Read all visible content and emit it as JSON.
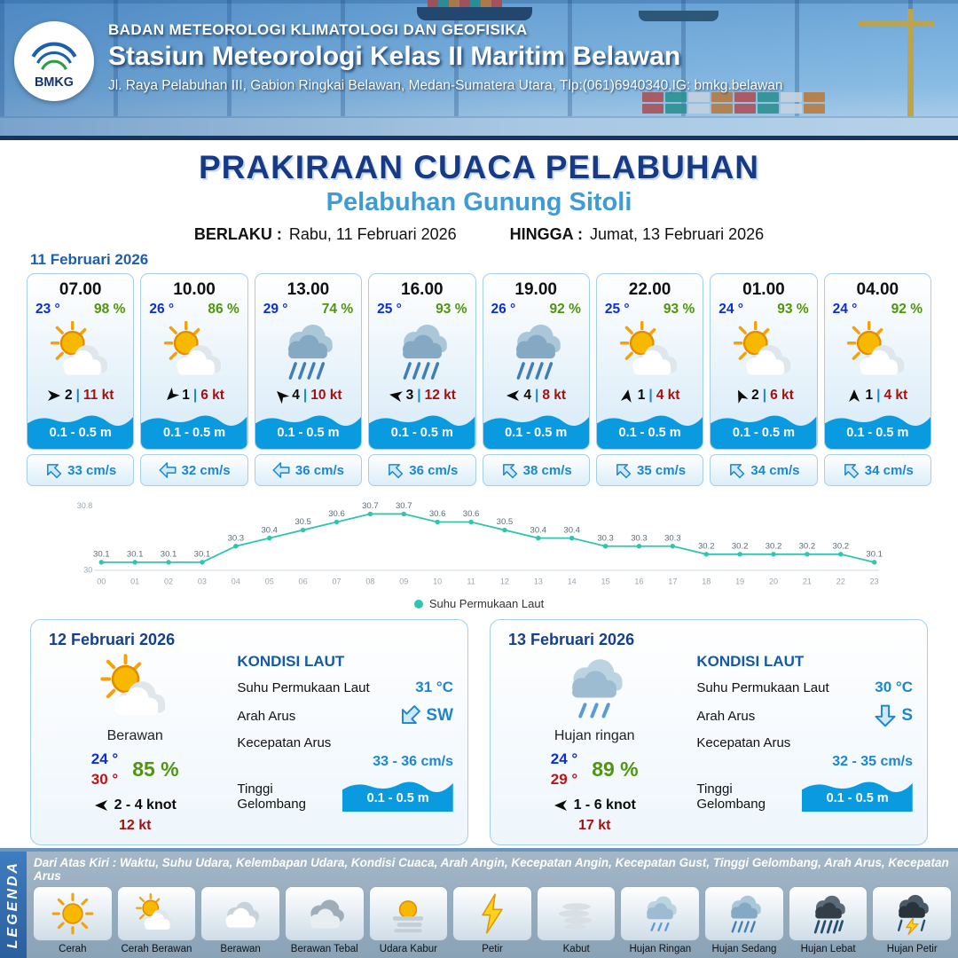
{
  "palette": {
    "accent_blue": "#1b5fae",
    "value_blue": "#0a2fd4",
    "humidity_green": "#4f960b",
    "gust_red": "#a51010",
    "wave_blue": "#0a9ae0",
    "line_teal": "#2fc5ae"
  },
  "header": {
    "org": "BADAN METEOROLOGI KLIMATOLOGI DAN GEOFISIKA",
    "station": "Stasiun Meteorologi Kelas II Maritim Belawan",
    "address": "Jl. Raya Pelabuhan III, Gabion Ringkai Belawan, Medan-Sumatera Utara, Tlp:(061)6940340,IG: bmkg.belawan",
    "logo_label": "BMKG"
  },
  "title": {
    "main": "PRAKIRAAN CUACA PELABUHAN",
    "port": "Pelabuhan Gunung Sitoli",
    "valid_from_label": "BERLAKU :",
    "valid_from": "Rabu, 11 Februari 2026",
    "valid_to_label": "HINGGA :",
    "valid_to": "Jumat, 13 Februari 2026"
  },
  "forecast": {
    "date": "11 Februari 2026",
    "cards": [
      {
        "time": "07.00",
        "temp": "23 °",
        "rh": "98 %",
        "icon": "cerah-berawan",
        "wind_val": "2",
        "wind_kt": "11 kt",
        "wind_rot": 90,
        "wave": "0.1 - 0.5 m",
        "current": "33 cm/s",
        "current_rot": 315
      },
      {
        "time": "10.00",
        "temp": "26 °",
        "rh": "86 %",
        "icon": "cerah-berawan",
        "wind_val": "1",
        "wind_kt": "6 kt",
        "wind_rot": 225,
        "wave": "0.1 - 0.5 m",
        "current": "32 cm/s",
        "current_rot": 270
      },
      {
        "time": "13.00",
        "temp": "29 °",
        "rh": "74 %",
        "icon": "hujan-sedang",
        "wind_val": "4",
        "wind_kt": "10 kt",
        "wind_rot": 315,
        "wave": "0.1 - 0.5 m",
        "current": "36 cm/s",
        "current_rot": 270
      },
      {
        "time": "16.00",
        "temp": "25 °",
        "rh": "93 %",
        "icon": "hujan-sedang",
        "wind_val": "3",
        "wind_kt": "12 kt",
        "wind_rot": 280,
        "wave": "0.1 - 0.5 m",
        "current": "36 cm/s",
        "current_rot": 315
      },
      {
        "time": "19.00",
        "temp": "26 °",
        "rh": "92 %",
        "icon": "hujan-sedang",
        "wind_val": "4",
        "wind_kt": "8 kt",
        "wind_rot": 270,
        "wave": "0.1 - 0.5 m",
        "current": "38 cm/s",
        "current_rot": 315
      },
      {
        "time": "22.00",
        "temp": "25 °",
        "rh": "93 %",
        "icon": "cerah-berawan",
        "wind_val": "1",
        "wind_kt": "4 kt",
        "wind_rot": 10,
        "wave": "0.1 - 0.5 m",
        "current": "35 cm/s",
        "current_rot": 315
      },
      {
        "time": "01.00",
        "temp": "24 °",
        "rh": "93 %",
        "icon": "cerah-berawan",
        "wind_val": "2",
        "wind_kt": "6 kt",
        "wind_rot": 335,
        "wave": "0.1 - 0.5 m",
        "current": "34 cm/s",
        "current_rot": 315
      },
      {
        "time": "04.00",
        "temp": "24 °",
        "rh": "92 %",
        "icon": "cerah-berawan",
        "wind_val": "1",
        "wind_kt": "4 kt",
        "wind_rot": 0,
        "wave": "0.1 - 0.5 m",
        "current": "34 cm/s",
        "current_rot": 315
      }
    ]
  },
  "chart_data": {
    "type": "line",
    "series_label": "Suhu Permukaan Laut",
    "x": [
      "00",
      "01",
      "02",
      "03",
      "04",
      "05",
      "06",
      "07",
      "08",
      "09",
      "10",
      "11",
      "12",
      "13",
      "14",
      "15",
      "16",
      "17",
      "18",
      "19",
      "20",
      "21",
      "22",
      "23"
    ],
    "values": [
      30.1,
      30.1,
      30.1,
      30.1,
      30.3,
      30.4,
      30.5,
      30.6,
      30.7,
      30.7,
      30.6,
      30.6,
      30.5,
      30.4,
      30.4,
      30.3,
      30.3,
      30.3,
      30.2,
      30.2,
      30.2,
      30.2,
      30.2,
      30.1
    ],
    "ylim": [
      30,
      30.8
    ],
    "color": "#2fc5ae",
    "grid": false,
    "legend_position": "bottom"
  },
  "sea_labels": {
    "title": "KONDISI LAUT",
    "sst": "Suhu Permukaan Laut",
    "dir": "Arah Arus",
    "speed": "Kecepatan Arus",
    "wave": "Tinggi Gelombang"
  },
  "daily": [
    {
      "date": "12 Februari 2026",
      "icon": "cerah-berawan",
      "condition": "Berawan",
      "temp_min": "24 °",
      "temp_max": "30 °",
      "rh": "85 %",
      "wind_range": "2 - 4 knot",
      "wind_rot": 270,
      "gust": "12 kt",
      "sea": {
        "sst": "31 °C",
        "dir": "SW",
        "dir_rot": 225,
        "speed": "33 - 36 cm/s",
        "wave": "0.1 - 0.5 m"
      }
    },
    {
      "date": "13 Februari 2026",
      "icon": "hujan-ringan",
      "condition": "Hujan ringan",
      "temp_min": "24 °",
      "temp_max": "29 °",
      "rh": "89 %",
      "wind_range": "1 - 6 knot",
      "wind_rot": 270,
      "gust": "17 kt",
      "sea": {
        "sst": "30 °C",
        "dir": "S",
        "dir_rot": 180,
        "speed": "32 - 35 cm/s",
        "wave": "0.1 - 0.5 m"
      }
    }
  ],
  "legend": {
    "title": "LEGENDA",
    "note": "Dari Atas Kiri : Waktu, Suhu Udara, Kelembapan Udara, Kondisi Cuaca, Arah Angin, Kecepatan Angin, Kecepatan Gust, Tinggi Gelombang, Arah Arus, Kecepatan Arus",
    "items": [
      {
        "label": "Cerah",
        "icon": "cerah"
      },
      {
        "label": "Cerah Berawan",
        "icon": "cerah-berawan"
      },
      {
        "label": "Berawan",
        "icon": "berawan"
      },
      {
        "label": "Berawan Tebal",
        "icon": "berawan-tebal"
      },
      {
        "label": "Udara Kabur",
        "icon": "udara-kabur"
      },
      {
        "label": "Petir",
        "icon": "petir"
      },
      {
        "label": "Kabut",
        "icon": "kabut"
      },
      {
        "label": "Hujan Ringan",
        "icon": "hujan-ringan"
      },
      {
        "label": "Hujan Sedang",
        "icon": "hujan-sedang"
      },
      {
        "label": "Hujan Lebat",
        "icon": "hujan-lebat"
      },
      {
        "label": "Hujan Petir",
        "icon": "hujan-petir"
      }
    ]
  }
}
